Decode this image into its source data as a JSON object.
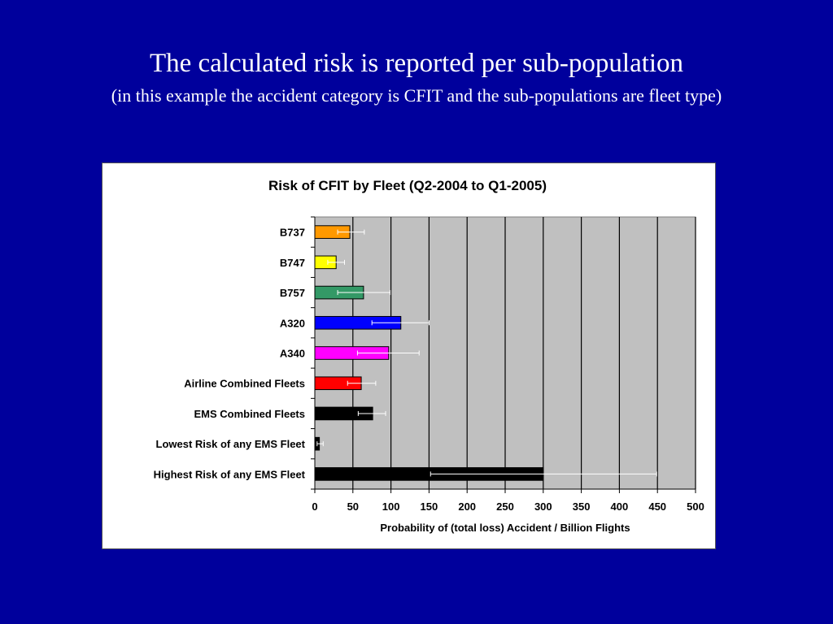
{
  "slide": {
    "title": "The calculated risk is reported per sub-population",
    "subtitle": "(in this example the accident category is  CFIT and the sub-populations are fleet type)"
  },
  "colors": {
    "background": "#00009c",
    "plot_area": "#c0c0c0",
    "error_bar": "#ffffff"
  },
  "chart_data": {
    "type": "bar",
    "orientation": "horizontal",
    "title": "Risk of CFIT by Fleet (Q2-2004 to Q1-2005)",
    "xlabel": "Probability of (total loss) Accident / Billion Flights",
    "ylabel": "",
    "xlim": [
      0,
      500
    ],
    "xticks": [
      0,
      50,
      100,
      150,
      200,
      250,
      300,
      350,
      400,
      450,
      500
    ],
    "grid": "vertical",
    "legend": "none",
    "categories": [
      "B737",
      "B747",
      "B757",
      "A320",
      "A340",
      "Airline Combined Fleets",
      "EMS Combined Fleets",
      "Lowest Risk of any EMS Fleet",
      "Highest Risk of any EMS Fleet"
    ],
    "values": [
      46,
      28,
      64,
      113,
      97,
      61,
      76,
      6,
      300
    ],
    "error_low": [
      30,
      17,
      30,
      75,
      56,
      43,
      57,
      3,
      152
    ],
    "error_high": [
      65,
      39,
      99,
      150,
      137,
      80,
      93,
      11,
      449
    ],
    "bar_colors": [
      "#ff9900",
      "#ffff00",
      "#339966",
      "#0000ff",
      "#ff00ff",
      "#ff0000",
      "#000000",
      "#000000",
      "#000000"
    ]
  }
}
